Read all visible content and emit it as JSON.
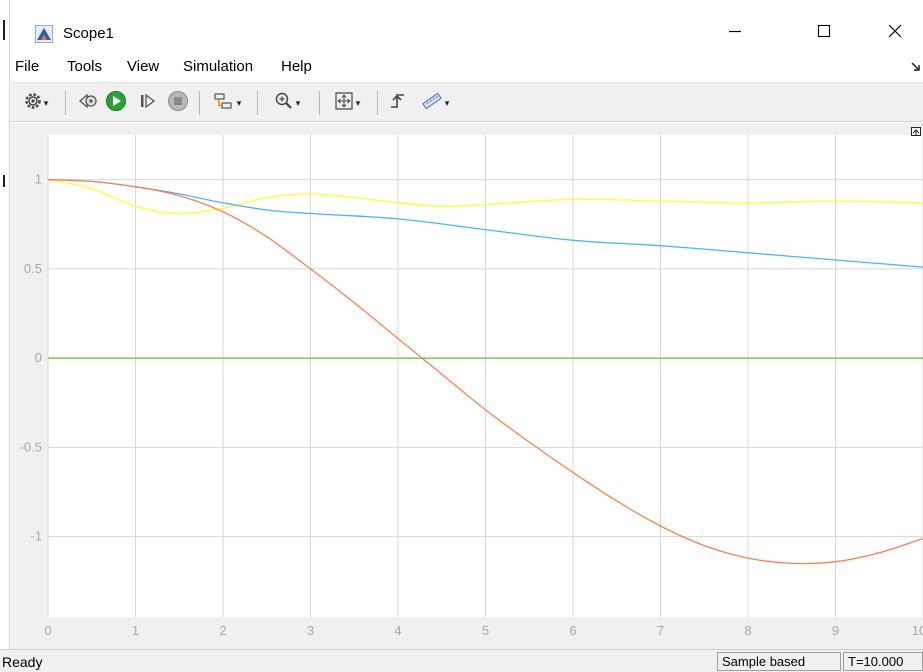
{
  "window": {
    "title": "Scope1",
    "controls": {
      "minimize": "—",
      "maximize": "☐",
      "close": "✕"
    }
  },
  "menu": {
    "items": [
      "File",
      "Tools",
      "View",
      "Simulation",
      "Help"
    ],
    "corner_icon": "undock-arrow-icon"
  },
  "toolbar": {
    "buttons": [
      {
        "name": "settings",
        "icon": "gear-icon",
        "dropdown": true
      },
      {
        "name": "step-back",
        "icon": "step-back-icon",
        "dropdown": false
      },
      {
        "name": "run",
        "icon": "play-icon",
        "dropdown": false
      },
      {
        "name": "step-forward",
        "icon": "step-forward-icon",
        "dropdown": false
      },
      {
        "name": "stop",
        "icon": "stop-icon",
        "dropdown": false
      },
      {
        "name": "signal-selection",
        "icon": "signal-selection-icon",
        "dropdown": true
      },
      {
        "name": "zoom",
        "icon": "zoom-in-icon",
        "dropdown": true
      },
      {
        "name": "autoscale",
        "icon": "autoscale-icon",
        "dropdown": true
      },
      {
        "name": "triggers",
        "icon": "trigger-icon",
        "dropdown": false
      },
      {
        "name": "measurements",
        "icon": "ruler-icon",
        "dropdown": true
      }
    ]
  },
  "status": {
    "text": "Ready",
    "mode": "Sample based",
    "time": "T=10.000"
  },
  "chart_data": {
    "type": "line",
    "title": "",
    "xlabel": "",
    "ylabel": "",
    "xlim": [
      0,
      10
    ],
    "ylim": [
      -1.45,
      1.25
    ],
    "xticks": [
      "0",
      "1",
      "2",
      "3",
      "4",
      "5",
      "6",
      "7",
      "8",
      "9",
      "10"
    ],
    "yticks": [
      "1",
      "0.5",
      "0",
      "-0.5",
      "-1"
    ],
    "ytick_values": [
      1,
      0.5,
      0,
      -0.5,
      -1
    ],
    "grid": true,
    "background": "#ffffff",
    "grid_color": "#d8d8d8",
    "series": [
      {
        "color": "#ffff2e",
        "x": [
          0,
          0.5,
          1,
          1.5,
          2,
          2.5,
          3,
          3.5,
          4,
          4.5,
          5,
          6,
          7,
          8,
          9,
          10
        ],
        "y": [
          1,
          0.95,
          0.85,
          0.81,
          0.84,
          0.9,
          0.92,
          0.9,
          0.87,
          0.85,
          0.86,
          0.89,
          0.88,
          0.87,
          0.88,
          0.87
        ]
      },
      {
        "color": "#4fb3ff",
        "x": [
          0,
          0.5,
          1,
          1.5,
          2,
          2.5,
          3,
          4,
          5,
          6,
          7,
          8,
          9,
          10
        ],
        "y": [
          1,
          0.99,
          0.96,
          0.92,
          0.87,
          0.83,
          0.81,
          0.78,
          0.72,
          0.66,
          0.63,
          0.59,
          0.55,
          0.51
        ]
      },
      {
        "color": "#ff7f50",
        "x": [
          0,
          0.5,
          1,
          1.5,
          2,
          2.5,
          3,
          3.5,
          4,
          4.5,
          5,
          5.5,
          6,
          6.5,
          7,
          7.5,
          8,
          8.5,
          9,
          9.5,
          10
        ],
        "y": [
          1,
          0.99,
          0.96,
          0.91,
          0.82,
          0.68,
          0.5,
          0.31,
          0.11,
          -0.09,
          -0.29,
          -0.47,
          -0.64,
          -0.8,
          -0.94,
          -1.05,
          -1.12,
          -1.15,
          -1.14,
          -1.09,
          -1.01
        ]
      },
      {
        "color": "#5ac82e",
        "x": [
          0,
          10
        ],
        "y": [
          0,
          0
        ]
      }
    ]
  }
}
